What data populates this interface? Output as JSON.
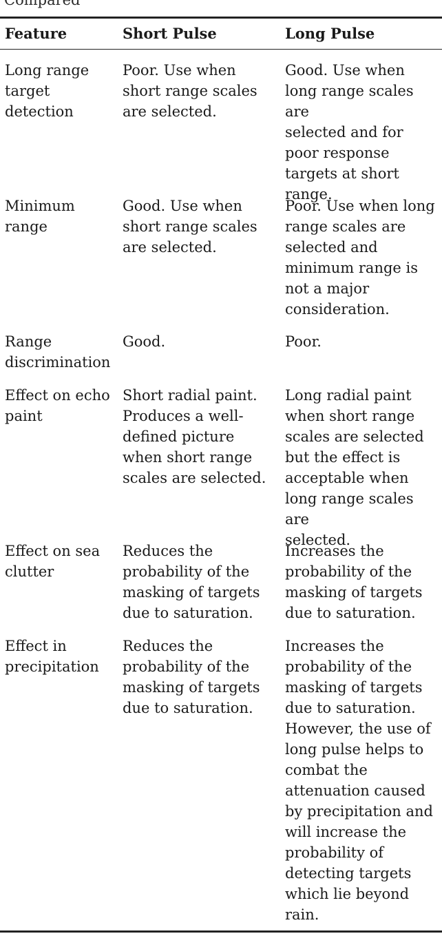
{
  "caption_fragment": "Compared",
  "table": {
    "headers": [
      "Feature",
      "Short Pulse",
      "Long Pulse"
    ],
    "rows": [
      {
        "feature": "Long range\ntarget\ndetection",
        "short_pulse": "Poor. Use when\nshort range scales\nare selected.",
        "long_pulse": "Good. Use when\nlong range scales are\nselected and for\npoor response\ntargets at short\nrange."
      },
      {
        "feature": "Minimum\nrange",
        "short_pulse": "Good. Use when\nshort range scales\nare selected.",
        "long_pulse": "Poor. Use when long\nrange scales are\nselected and\nminimum range is\nnot a major\nconsideration."
      },
      {
        "feature": "Range\ndiscrimination",
        "short_pulse": "Good.",
        "long_pulse": "Poor."
      },
      {
        "feature": "Effect on echo\npaint",
        "short_pulse": "Short radial paint.\nProduces a well-\ndefined picture\nwhen short range\nscales are selected.",
        "long_pulse": "Long radial paint\nwhen short range\nscales are selected\nbut the effect is\nacceptable when\nlong range scales are\nselected."
      },
      {
        "feature": "Effect on sea\nclutter",
        "short_pulse": "Reduces the\nprobability of the\nmasking of targets\ndue to saturation.",
        "long_pulse": "Increases the\nprobability of the\nmasking of targets\ndue to saturation."
      },
      {
        "feature": "Effect in\nprecipitation",
        "short_pulse": "Reduces the\nprobability of the\nmasking of targets\ndue to saturation.",
        "long_pulse": "Increases the\nprobability of the\nmasking of targets\ndue to saturation.\nHowever, the use of\nlong pulse helps to\ncombat the\nattenuation caused\nby precipitation and\nwill increase the\nprobability of\ndetecting targets\nwhich lie beyond\nrain."
      }
    ]
  }
}
